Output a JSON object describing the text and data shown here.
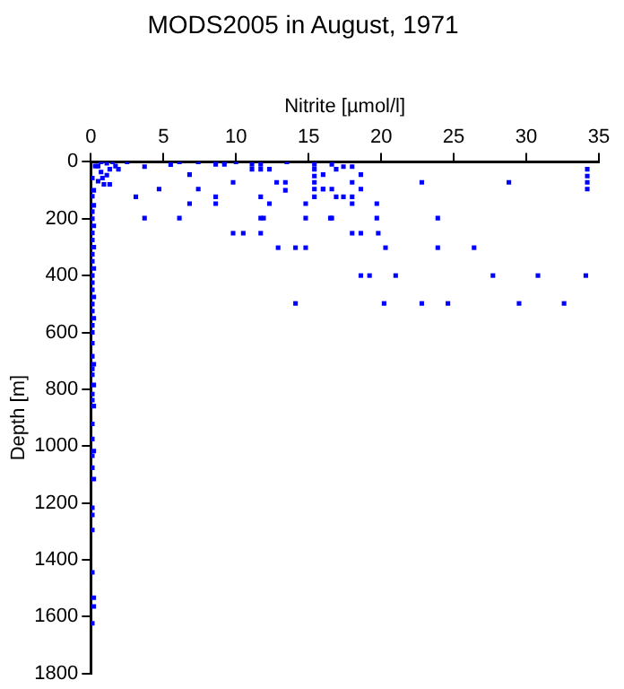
{
  "chart_data": {
    "type": "scatter",
    "title": "MODS2005 in August, 1971",
    "xlabel": "Nitrite [µmol/l]",
    "ylabel": "Depth [m]",
    "xlim": [
      0,
      35
    ],
    "xticks": [
      0,
      5,
      10,
      15,
      20,
      25,
      30,
      35
    ],
    "ylim": [
      1800,
      0
    ],
    "yticks": [
      0,
      200,
      400,
      600,
      800,
      1000,
      1200,
      1400,
      1600,
      1800
    ],
    "grid": false,
    "legend": false,
    "marker": "square",
    "series": [
      {
        "color": "#0000ff",
        "x": [
          2.5,
          3.7,
          5.5,
          6.1,
          7.4,
          8.6,
          8.6,
          9.2,
          9.2,
          10,
          6.8,
          4.7,
          7.4,
          3.1,
          6.8,
          8.6,
          8.6,
          3.7,
          6.1,
          9.8,
          9.8,
          10.5,
          11.1,
          11.1,
          11.7,
          11.7,
          12.3,
          12.8,
          13.4,
          13.4,
          13.5,
          11.7,
          12.3,
          11.7,
          11.9,
          11.7,
          12.9,
          14.1,
          14.8,
          14.1,
          14.8,
          14.8,
          15.4,
          15.4,
          15.4,
          15.4,
          15.4,
          16,
          16.5,
          15.4,
          16.6,
          16.9,
          17.4,
          18,
          18.6,
          16,
          16,
          16.6,
          18,
          18.6,
          16.9,
          17.4,
          18,
          18,
          19.7,
          16.6,
          19.7,
          18,
          18.6,
          19.8,
          20.3,
          22.8,
          28.8,
          34.2,
          34.2,
          34.2,
          34.2,
          23.9,
          23.9,
          26.4,
          18.6,
          19.2,
          21,
          27.7,
          30.8,
          34.1,
          20.2,
          22.8,
          24.6,
          29.5,
          32.6,
          0.7,
          1.1,
          1.5,
          1.9,
          0.7,
          1.3,
          0.3,
          0.5,
          0.9,
          0.1,
          0.2,
          1.1,
          1.7,
          0.5,
          0.8,
          1.3,
          0.1,
          0.2,
          0.1,
          0.1,
          0.2,
          0.1,
          0.1,
          0.2,
          0.1,
          0.1,
          0.2,
          0.1,
          0.1,
          0.1,
          0.2,
          0.1,
          0.1,
          0.2,
          0.1,
          0.1,
          0.1,
          0.1,
          0.2,
          0.1,
          0.1,
          0.2,
          0.1,
          0.1,
          0.2,
          0.1,
          0.1,
          0.2,
          0.1,
          0.1,
          0.2,
          0.1,
          0.1,
          0.1,
          0.1,
          0.2,
          0.2,
          0.1
        ],
        "values": [
          0,
          17,
          10,
          0,
          0,
          0,
          9,
          0,
          9,
          0,
          45,
          96,
          96,
          123,
          147,
          123,
          147,
          198,
          198,
          72,
          251,
          251,
          9,
          26,
          9,
          26,
          26,
          72,
          72,
          100,
          0,
          123,
          147,
          198,
          198,
          251,
          302,
          302,
          302,
          498,
          147,
          198,
          9,
          26,
          50,
          72,
          96,
          96,
          198,
          123,
          9,
          26,
          17,
          17,
          45,
          45,
          96,
          96,
          72,
          96,
          123,
          123,
          123,
          147,
          147,
          198,
          198,
          251,
          251,
          251,
          302,
          72,
          72,
          26,
          50,
          72,
          96,
          198,
          302,
          302,
          400,
          400,
          400,
          400,
          400,
          400,
          498,
          498,
          498,
          498,
          498,
          0,
          5,
          0,
          26,
          36,
          26,
          15,
          68,
          79,
          57,
          100,
          47,
          15,
          15,
          57,
          79,
          121,
          153,
          175,
          200,
          225,
          250,
          275,
          300,
          325,
          350,
          375,
          400,
          425,
          450,
          475,
          500,
          525,
          550,
          575,
          600,
          638,
          684,
          712,
          728,
          749,
          785,
          817,
          838,
          859,
          922,
          975,
          1017,
          1034,
          1076,
          1116,
          1217,
          1242,
          1295,
          1444,
          1533,
          1564,
          1623
        ]
      }
    ]
  }
}
